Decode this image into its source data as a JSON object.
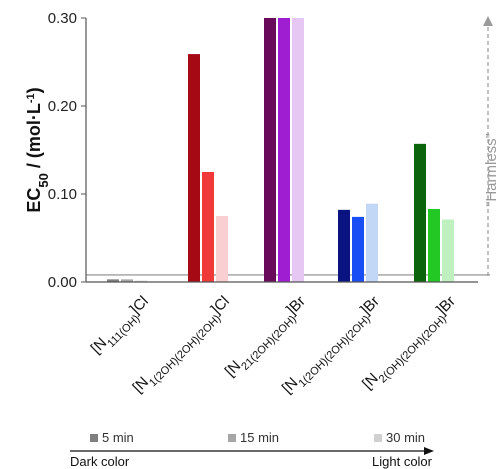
{
  "chart_data": {
    "type": "bar",
    "ylabel": {
      "base": "EC",
      "sub": "50",
      "rest": " / (mol·L",
      "sup": "-1",
      "end": ")"
    },
    "ylim": [
      0,
      0.3
    ],
    "yticks": [
      "0.00",
      "0.10",
      "0.20",
      "0.30"
    ],
    "ytick_values": [
      0,
      0.1,
      0.2,
      0.3
    ],
    "threshold": 0.008,
    "harmless_label": "“Harmless”",
    "categories": [
      {
        "pre": "[N",
        "sub": "111(OH)",
        "post": "]Cl"
      },
      {
        "pre": "[N",
        "sub": "1(2OH)(2OH)(2OH)",
        "post": "]Cl"
      },
      {
        "pre": "[N",
        "sub": "21(2OH)(2OH)",
        "post": "]Br"
      },
      {
        "pre": "[N",
        "sub": "1(2OH)(2OH)(2OH)",
        "post": "]Br"
      },
      {
        "pre": "[N",
        "sub": "2(OH)(2OH)(2OH)",
        "post": "]Br"
      }
    ],
    "series": [
      {
        "name": "5 min",
        "values": [
          0.003,
          0.259,
          0.3,
          0.082,
          0.157
        ]
      },
      {
        "name": "15 min",
        "values": [
          0.003,
          0.125,
          0.3,
          0.074,
          0.083
        ]
      },
      {
        "name": "30 min",
        "values": [
          0.0015,
          0.075,
          0.3,
          0.089,
          0.071
        ]
      }
    ],
    "colors": [
      [
        "#7f7f7f",
        "#a6a6a6",
        "#d0d0d0"
      ],
      [
        "#a50a14",
        "#f03a3a",
        "#f9cfd2"
      ],
      [
        "#6a0a5a",
        "#a01ed2",
        "#e6c6f2"
      ],
      [
        "#0a1480",
        "#1a4ef5",
        "#c2d7f6"
      ],
      [
        "#0a640a",
        "#24c824",
        "#bff0bf"
      ]
    ],
    "legend_swatch_colors": [
      "#7f7f7f",
      "#a6a6a6",
      "#d0d0d0"
    ],
    "legend_arrow": {
      "left": "Dark color",
      "right": "Light color"
    }
  }
}
